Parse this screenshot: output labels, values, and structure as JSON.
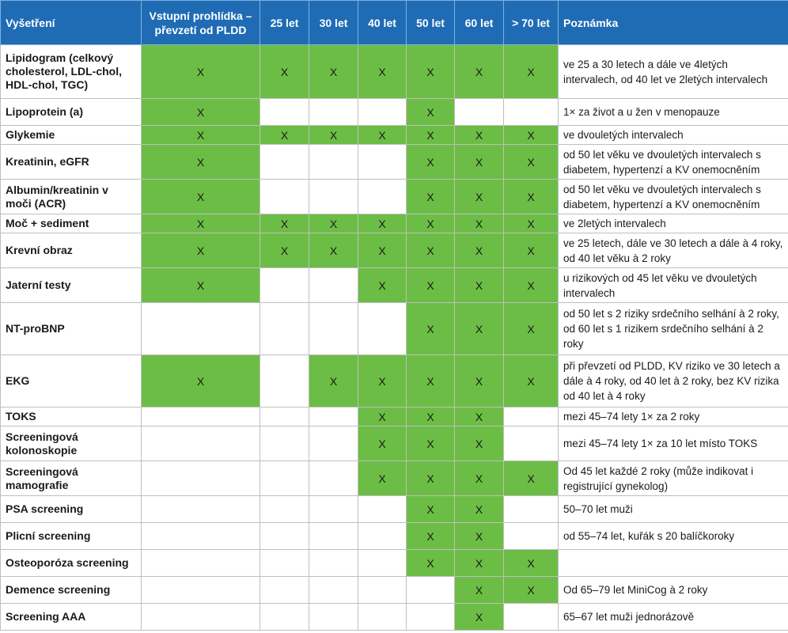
{
  "headers": [
    "Vyšetření",
    "Vstupní prohlídka – převzetí od PLDD",
    "25 let",
    "30 let",
    "40 let",
    "50 let",
    "60 let",
    "> 70 let",
    "Poznámka"
  ],
  "mark_symbol": "X",
  "colors": {
    "header_bg": "#1f6cb5",
    "mark_bg": "#6cbd45",
    "grid": "#bfbfbf"
  },
  "rows": [
    {
      "name": "Lipidogram (celkový cholesterol, LDL-chol, HDL-chol, TGC)",
      "marks": [
        1,
        1,
        1,
        1,
        1,
        1,
        1
      ],
      "note": "ve 25 a 30 letech a dále ve 4letých intervalech, od 40 let ve 2letých intervalech"
    },
    {
      "name": "Lipoprotein (a)",
      "marks": [
        1,
        0,
        0,
        0,
        1,
        0,
        0
      ],
      "note": "1× za život a u žen v menopauze"
    },
    {
      "name": "Glykemie",
      "marks": [
        1,
        1,
        1,
        1,
        1,
        1,
        1
      ],
      "note": "ve dvouletých intervalech"
    },
    {
      "name": "Kreatinin, eGFR",
      "marks": [
        1,
        0,
        0,
        0,
        1,
        1,
        1
      ],
      "note": "od 50 let věku ve dvouletých intervalech s diabetem, hypertenzí a KV onemocněním"
    },
    {
      "name": "Albumin/kreatinin v moči (ACR)",
      "marks": [
        1,
        0,
        0,
        0,
        1,
        1,
        1
      ],
      "note": "od 50 let věku ve dvouletých intervalech s diabetem, hypertenzí a KV onemocněním"
    },
    {
      "name": "Moč + sediment",
      "marks": [
        1,
        1,
        1,
        1,
        1,
        1,
        1
      ],
      "note": "ve 2letých intervalech"
    },
    {
      "name": "Krevní obraz",
      "marks": [
        1,
        1,
        1,
        1,
        1,
        1,
        1
      ],
      "note": "ve 25 letech, dále ve 30 letech a dále à 4 roky, od 40 let věku à 2 roky"
    },
    {
      "name": "Jaterní testy",
      "marks": [
        1,
        0,
        0,
        1,
        1,
        1,
        1
      ],
      "note": "u rizikových od 45 let věku ve dvouletých intervalech"
    },
    {
      "name": "NT-proBNP",
      "marks": [
        0,
        0,
        0,
        0,
        1,
        1,
        1
      ],
      "note": "od 50 let s 2 riziky srdečního selhání à 2 roky, od 60 let s 1 rizikem srdečního selhání à 2 roky"
    },
    {
      "name": "EKG",
      "marks": [
        1,
        0,
        1,
        1,
        1,
        1,
        1
      ],
      "note": "při převzetí od PLDD, KV riziko ve 30 letech a dále à 4 roky, od 40 let à 2 roky, bez KV rizika od 40 let à 4 roky"
    },
    {
      "name": "TOKS",
      "marks": [
        0,
        0,
        0,
        1,
        1,
        1,
        0
      ],
      "note": "mezi 45–74 lety 1× za 2 roky"
    },
    {
      "name": "Screeningová kolonoskopie",
      "marks": [
        0,
        0,
        0,
        1,
        1,
        1,
        0
      ],
      "note": "mezi 45–74 lety 1× za 10 let místo TOKS"
    },
    {
      "name": "Screeningová mamografie",
      "marks": [
        0,
        0,
        0,
        1,
        1,
        1,
        1
      ],
      "note": "Od 45 let každé 2 roky (může indikovat i registrující gynekolog)"
    },
    {
      "name": "PSA screening",
      "marks": [
        0,
        0,
        0,
        0,
        1,
        1,
        0
      ],
      "note": "50–70 let muži"
    },
    {
      "name": "Plicní screening",
      "marks": [
        0,
        0,
        0,
        0,
        1,
        1,
        0
      ],
      "note": "od 55–74 let, kuřák s 20 balíčkoroky"
    },
    {
      "name": "Osteoporóza screening",
      "marks": [
        0,
        0,
        0,
        0,
        1,
        1,
        1
      ],
      "note": ""
    },
    {
      "name": "Demence screening",
      "marks": [
        0,
        0,
        0,
        0,
        0,
        1,
        1
      ],
      "note": "Od 65–79 let MiniCog à 2 roky"
    },
    {
      "name": "Screening AAA",
      "marks": [
        0,
        0,
        0,
        0,
        0,
        1,
        0
      ],
      "note": "65–67 let muži jednorázově"
    }
  ]
}
